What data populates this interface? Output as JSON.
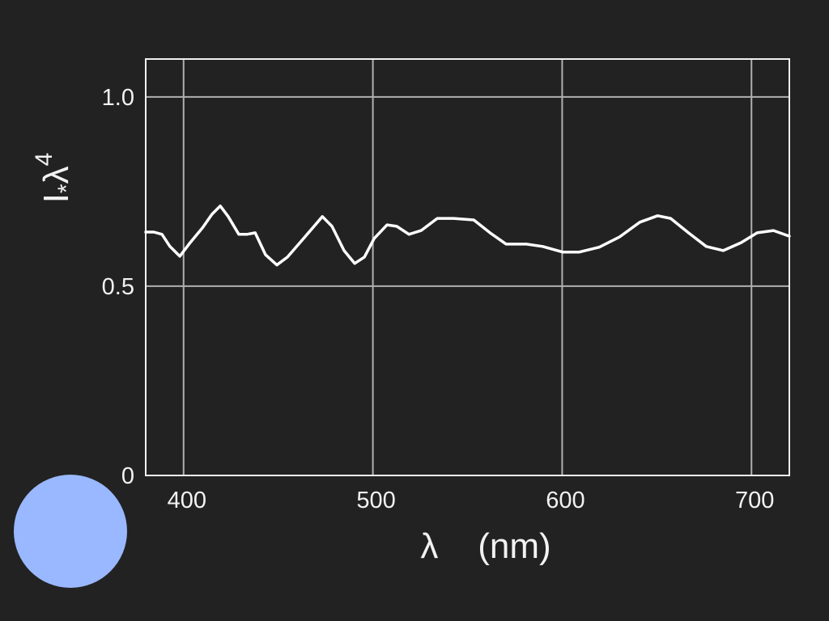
{
  "chart_data": {
    "type": "line",
    "x_label": "λ    (nm)",
    "y_label": [
      "I",
      "*",
      "λ",
      "4"
    ],
    "x": [
      380,
      384.3,
      388.6,
      392.8,
      398,
      403.5,
      410,
      415,
      419.4,
      423.6,
      429.2,
      433.5,
      437.8,
      443.3,
      449.3,
      454.9,
      463.4,
      473.3,
      478.4,
      484.8,
      490.4,
      495.5,
      500.7,
      507.5,
      512.6,
      519.1,
      525.5,
      534,
      542.6,
      553.3,
      561.9,
      570.4,
      581.1,
      589.7,
      600.4,
      608.9,
      619.6,
      630.3,
      641,
      650.4,
      657.3,
      666.7,
      676.1,
      685.1,
      694.5,
      703,
      711.6,
      720
    ],
    "values": [
      0.643,
      0.643,
      0.637,
      0.605,
      0.579,
      0.615,
      0.654,
      0.69,
      0.712,
      0.684,
      0.637,
      0.637,
      0.641,
      0.583,
      0.556,
      0.577,
      0.626,
      0.684,
      0.658,
      0.594,
      0.56,
      0.577,
      0.626,
      0.662,
      0.658,
      0.637,
      0.647,
      0.679,
      0.679,
      0.675,
      0.641,
      0.611,
      0.611,
      0.605,
      0.59,
      0.59,
      0.603,
      0.63,
      0.669,
      0.686,
      0.679,
      0.641,
      0.605,
      0.594,
      0.615,
      0.641,
      0.647,
      0.632
    ],
    "color": "#ffffff",
    "xlim": [
      380,
      720
    ],
    "ylim": [
      0,
      1.1
    ],
    "xticks": [
      400,
      500,
      600,
      700
    ],
    "yticks": [
      0,
      0.5,
      {
        "value": 1,
        "label": "1.0"
      }
    ],
    "grid": true
  }
}
